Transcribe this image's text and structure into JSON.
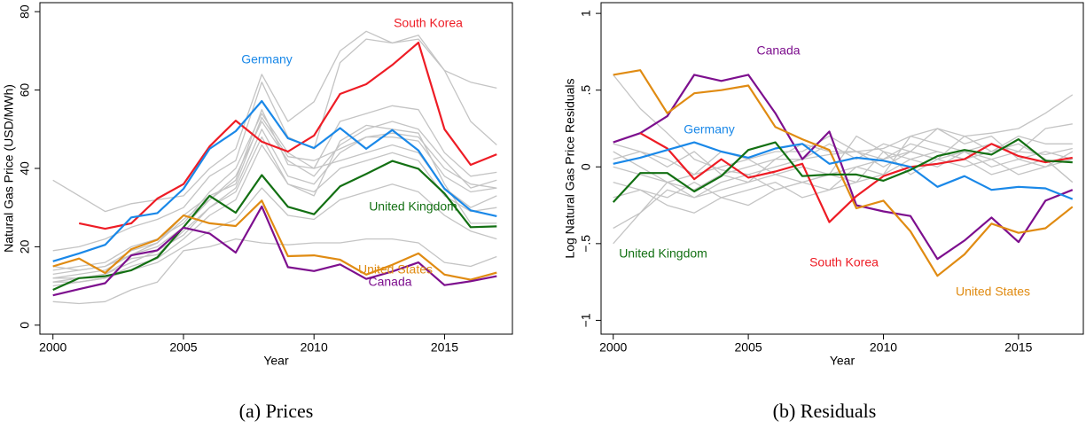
{
  "chart_data": [
    {
      "type": "line",
      "caption": "(a) Prices",
      "xlabel": "Year",
      "ylabel": "Natural Gas Price (USD/MWh)",
      "x": [
        2000,
        2001,
        2002,
        2003,
        2004,
        2005,
        2006,
        2007,
        2008,
        2009,
        2010,
        2011,
        2012,
        2013,
        2014,
        2015,
        2016,
        2017
      ],
      "xlim": [
        1999.5,
        2017.6
      ],
      "xticks": [
        2000,
        2005,
        2010,
        2015
      ],
      "ylim": [
        -2.3,
        82.3
      ],
      "yticks": [
        0,
        20,
        40,
        60,
        80
      ],
      "series": [
        {
          "color": "#c4c4c4",
          "values": [
            37,
            33,
            29,
            31,
            32,
            33,
            40,
            45,
            64,
            52,
            57,
            70,
            75,
            72,
            74,
            65,
            62,
            60.5
          ]
        },
        {
          "color": "#c4c4c4",
          "values": [
            19,
            20,
            22,
            25,
            27,
            30,
            38,
            42,
            62,
            48,
            45,
            67,
            73,
            72,
            73,
            65,
            52,
            46
          ]
        },
        {
          "color": "#c4c4c4",
          "values": [
            14,
            15,
            16,
            20,
            22,
            26,
            34,
            40,
            54,
            44,
            40,
            52,
            54,
            56,
            55,
            44,
            38,
            39
          ]
        },
        {
          "color": "#c4c4c4",
          "values": [
            12,
            13,
            14,
            18,
            20,
            25,
            32,
            38,
            52,
            42,
            38,
            46,
            50,
            52,
            50,
            42,
            35,
            37
          ]
        },
        {
          "color": "#c4c4c4",
          "values": [
            11,
            12,
            13,
            17,
            18,
            24,
            30,
            35,
            50,
            38,
            36,
            44,
            48,
            48,
            47,
            38,
            34,
            35
          ]
        },
        {
          "color": "#c4c4c4",
          "values": [
            13,
            14,
            15,
            19,
            21,
            27,
            32,
            37,
            55,
            41,
            40,
            42,
            44,
            46,
            44,
            35,
            30,
            33
          ]
        },
        {
          "color": "#c4c4c4",
          "values": [
            10,
            11,
            12,
            15,
            17,
            22,
            28,
            32,
            46,
            36,
            34,
            40,
            42,
            44,
            42,
            33,
            29,
            30
          ]
        },
        {
          "color": "#c4c4c4",
          "values": [
            12,
            12,
            13,
            16,
            19,
            23,
            30,
            34,
            48,
            36,
            33,
            47,
            51,
            50,
            49,
            36,
            26,
            26
          ]
        },
        {
          "color": "#c4c4c4",
          "values": [
            6,
            5.5,
            6,
            9,
            11,
            19,
            20,
            22,
            21,
            20.5,
            21,
            21,
            22,
            22,
            21,
            16,
            15,
            17.5
          ]
        },
        {
          "color": "#c4c4c4",
          "values": [
            11,
            11,
            12,
            14,
            16,
            20,
            24,
            27,
            35,
            28,
            27,
            32,
            34,
            36,
            34,
            28,
            24,
            22
          ]
        },
        {
          "color": "#c4c4c4",
          "values": [
            15,
            14,
            15,
            18,
            21,
            28,
            33,
            36,
            53,
            43,
            42,
            45,
            48,
            49,
            48,
            40,
            36,
            35
          ]
        },
        {
          "name": "South Korea",
          "color": "#ee1c25",
          "values": [
            null,
            26,
            24.6,
            26,
            32.3,
            36,
            45.6,
            52.2,
            46.8,
            44.3,
            48.4,
            59,
            61.5,
            66.4,
            72.1,
            50,
            40.9,
            43.6
          ]
        },
        {
          "name": "Germany",
          "color": "#1a88e8",
          "values": [
            16.3,
            18.3,
            20.5,
            27.5,
            28.6,
            34.8,
            45,
            49.5,
            57.2,
            47.7,
            45.2,
            50.3,
            45,
            49.8,
            44.6,
            34.8,
            29.3,
            27.8
          ]
        },
        {
          "name": "United Kingdom",
          "color": "#137013",
          "values": [
            9,
            12,
            12.5,
            14,
            17.3,
            25,
            33,
            28.7,
            38.3,
            30.2,
            28.3,
            35.4,
            38.6,
            41.9,
            39.9,
            33.6,
            25,
            25.2
          ]
        },
        {
          "name": "United States",
          "color": "#e08b12",
          "values": [
            15,
            17,
            13.3,
            19.4,
            21.8,
            28,
            26,
            25.3,
            31.8,
            17.6,
            17.8,
            16.7,
            12.9,
            15.4,
            18.3,
            12.9,
            11.6,
            13.4
          ]
        },
        {
          "name": "Canada",
          "color": "#7d0f8e",
          "values": [
            7.6,
            9.2,
            10.7,
            17.8,
            19.1,
            24.9,
            23.4,
            18.5,
            30.3,
            14.8,
            13.8,
            15.5,
            11.8,
            13.7,
            16,
            10.2,
            11.2,
            12.5
          ]
        }
      ]
    },
    {
      "type": "line",
      "caption": "(b) Residuals",
      "xlabel": "Year",
      "ylabel": "Log Natural Gas Price Residuals",
      "x": [
        2000,
        2001,
        2002,
        2003,
        2004,
        2005,
        2006,
        2007,
        2008,
        2009,
        2010,
        2011,
        2012,
        2013,
        2014,
        2015,
        2016,
        2017
      ],
      "xlim": [
        1999.55,
        2017.4
      ],
      "xticks": [
        2000,
        2005,
        2010,
        2015
      ],
      "ylim": [
        -1.09,
        1.07
      ],
      "yticks": [
        {
          "value": -1,
          "label": "−1"
        },
        {
          "value": -0.5,
          "label": "−.5"
        },
        0,
        {
          "value": 0.5,
          "label": ".5"
        },
        1
      ],
      "series": [
        {
          "color": "#c4c4c4",
          "values": [
            0.6,
            0.38,
            0.22,
            0.05,
            -0.02,
            -0.05,
            0,
            0.05,
            0.08,
            0.1,
            0.12,
            0.2,
            0.25,
            0.2,
            0.22,
            0.25,
            0.35,
            0.47
          ]
        },
        {
          "color": "#c4c4c4",
          "values": [
            -0.4,
            -0.3,
            -0.15,
            -0.2,
            -0.1,
            -0.05,
            -0.15,
            -0.1,
            -0.05,
            0,
            0.05,
            0.15,
            0.1,
            0.05,
            0.1,
            0.2,
            0.15,
            0.15
          ]
        },
        {
          "color": "#c4c4c4",
          "values": [
            0.1,
            0,
            -0.1,
            -0.05,
            0,
            0.05,
            0.1,
            0.1,
            0.2,
            0.1,
            0,
            0.1,
            0.25,
            0.15,
            0.2,
            0.05,
            0.1,
            0.05
          ]
        },
        {
          "color": "#c4c4c4",
          "values": [
            -0.2,
            -0.15,
            -0.2,
            -0.1,
            -0.2,
            -0.25,
            -0.15,
            -0.1,
            -0.05,
            -0.1,
            0.1,
            -0.05,
            0.05,
            0,
            0.05,
            -0.05,
            0,
            0.05
          ]
        },
        {
          "color": "#c4c4c4",
          "values": [
            0.15,
            0.1,
            0.05,
            -0.05,
            0.1,
            0.05,
            -0.05,
            -0.1,
            -0.15,
            -0.1,
            -0.05,
            0.05,
            0,
            0.1,
            0.05,
            0.1,
            0.08,
            0.12
          ]
        },
        {
          "color": "#c4c4c4",
          "values": [
            -0.5,
            -0.3,
            -0.1,
            -0.15,
            -0.05,
            0,
            0.05,
            0.05,
            0.15,
            0.05,
            0.15,
            0.1,
            0.05,
            0.1,
            0,
            0.05,
            0,
            0.1
          ]
        },
        {
          "color": "#c4c4c4",
          "values": [
            0,
            -0.05,
            -0.1,
            -0.2,
            -0.15,
            -0.1,
            -0.05,
            0,
            -0.05,
            0.2,
            0.1,
            0.05,
            0.1,
            0.05,
            -0.05,
            0,
            0.05,
            -0.1
          ]
        },
        {
          "color": "#c4c4c4",
          "values": [
            -0.1,
            -0.15,
            -0.25,
            -0.3,
            -0.2,
            -0.15,
            -0.1,
            -0.2,
            -0.15,
            0,
            -0.05,
            0.2,
            0.15,
            0.1,
            0.15,
            0.1,
            0.25,
            0.28
          ]
        },
        {
          "color": "#c4c4c4",
          "values": [
            0.05,
            0.1,
            0,
            0.1,
            -0.05,
            -0.1,
            0.05,
            0.15,
            0.1,
            0.1,
            0.05,
            0.1,
            0.05,
            0.2,
            0.1,
            0.15,
            0.05,
            -0.1
          ]
        },
        {
          "name": "Canada",
          "color": "#7d0f8e",
          "values": [
            0.16,
            0.22,
            0.33,
            0.6,
            0.56,
            0.6,
            0.35,
            0.05,
            0.23,
            -0.25,
            -0.29,
            -0.32,
            -0.6,
            -0.48,
            -0.33,
            -0.49,
            -0.22,
            -0.15
          ]
        },
        {
          "name": "United States",
          "color": "#e08b12",
          "values": [
            0.6,
            0.63,
            0.35,
            0.48,
            0.5,
            0.53,
            0.26,
            0.18,
            0.11,
            -0.27,
            -0.22,
            -0.42,
            -0.71,
            -0.57,
            -0.37,
            -0.43,
            -0.4,
            -0.26
          ]
        },
        {
          "name": "South Korea",
          "color": "#ee1c25",
          "values": [
            null,
            0.22,
            0.12,
            -0.08,
            0.05,
            -0.07,
            -0.03,
            0.02,
            -0.36,
            -0.19,
            -0.06,
            0,
            0.02,
            0.05,
            0.15,
            0.07,
            0.03,
            0.06
          ]
        },
        {
          "name": "Germany",
          "color": "#1a88e8",
          "values": [
            0.02,
            0.06,
            0.11,
            0.16,
            0.1,
            0.06,
            0.12,
            0.15,
            0.02,
            0.06,
            0.04,
            0,
            -0.13,
            -0.06,
            -0.15,
            -0.13,
            -0.14,
            -0.21
          ]
        },
        {
          "name": "United Kingdom",
          "color": "#137013",
          "values": [
            -0.23,
            -0.04,
            -0.04,
            -0.16,
            -0.06,
            0.11,
            0.16,
            -0.06,
            -0.05,
            -0.05,
            -0.09,
            -0.02,
            0.07,
            0.11,
            0.08,
            0.18,
            0.04,
            0.03
          ]
        }
      ]
    }
  ]
}
